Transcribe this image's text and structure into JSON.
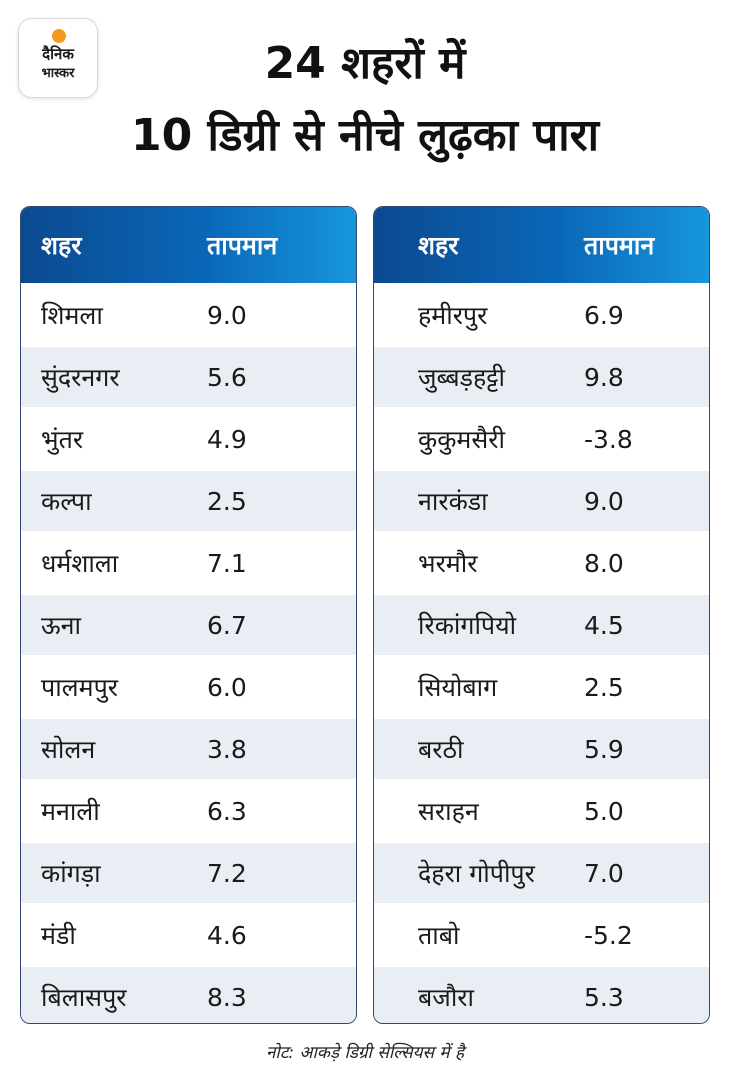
{
  "logo": {
    "line1": "दैनिक",
    "line2": "भास्कर",
    "dot_color": "#f39a1e"
  },
  "headline": {
    "line1": "24 शहरों में",
    "line2": "10 डिग्री से नीचे लुढ़का पारा"
  },
  "colors": {
    "header_start": "#0b4a90",
    "header_end": "#1796dc",
    "row_alt": "#e9eef5",
    "border": "#2f4b72"
  },
  "table_left": {
    "header": {
      "city": "शहर",
      "temp": "तापमान"
    },
    "rows": [
      {
        "city": "शिमला",
        "temp": "9.0"
      },
      {
        "city": "सुंदरनगर",
        "temp": "5.6"
      },
      {
        "city": "भुंतर",
        "temp": "4.9"
      },
      {
        "city": "कल्पा",
        "temp": "2.5"
      },
      {
        "city": "धर्मशाला",
        "temp": "7.1"
      },
      {
        "city": "ऊना",
        "temp": "6.7"
      },
      {
        "city": "पालमपुर",
        "temp": "6.0"
      },
      {
        "city": "सोलन",
        "temp": "3.8"
      },
      {
        "city": "मनाली",
        "temp": "6.3"
      },
      {
        "city": "कांगड़ा",
        "temp": "7.2"
      },
      {
        "city": "मंडी",
        "temp": "4.6"
      },
      {
        "city": "बिलासपुर",
        "temp": "8.3"
      }
    ]
  },
  "table_right": {
    "header": {
      "city": "शहर",
      "temp": "तापमान"
    },
    "rows": [
      {
        "city": "हमीरपुर",
        "temp": "6.9"
      },
      {
        "city": "जुब्बड़हट्टी",
        "temp": "9.8"
      },
      {
        "city": "कुकुमसैरी",
        "temp": "-3.8"
      },
      {
        "city": "नारकंडा",
        "temp": "9.0"
      },
      {
        "city": "भरमौर",
        "temp": "8.0"
      },
      {
        "city": "रिकांगपियो",
        "temp": "4.5"
      },
      {
        "city": "सियोबाग",
        "temp": "2.5"
      },
      {
        "city": "बरठी",
        "temp": "5.9"
      },
      {
        "city": "सराहन",
        "temp": "5.0"
      },
      {
        "city": "देहरा गोपीपुर",
        "temp": "7.0"
      },
      {
        "city": "ताबो",
        "temp": "-5.2"
      },
      {
        "city": "बजौरा",
        "temp": "5.3"
      }
    ]
  },
  "note": "नोट: आकड़े डिग्री सेल्सियस में है"
}
